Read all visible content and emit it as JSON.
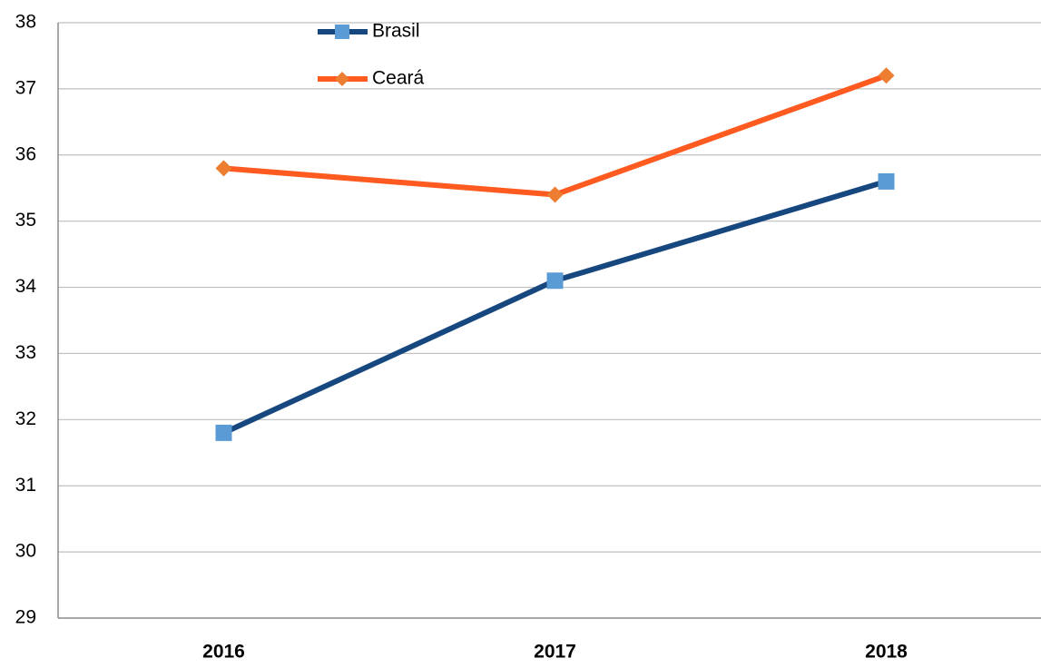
{
  "chart_data": {
    "type": "line",
    "categories": [
      "2016",
      "2017",
      "2018"
    ],
    "series": [
      {
        "name": "Brasil",
        "color": "#17477f",
        "marker_color": "#5b9bd5",
        "marker": "square",
        "values": [
          31.8,
          34.1,
          35.6
        ]
      },
      {
        "name": "Ceará",
        "color": "#ff5a1f",
        "marker_color": "#ed7d31",
        "marker": "diamond",
        "values": [
          35.8,
          35.4,
          37.2
        ]
      }
    ],
    "ylim": [
      29,
      38
    ],
    "yticks": [
      29,
      30,
      31,
      32,
      33,
      34,
      35,
      36,
      37,
      38
    ],
    "grid": true,
    "legend": "top-left"
  }
}
